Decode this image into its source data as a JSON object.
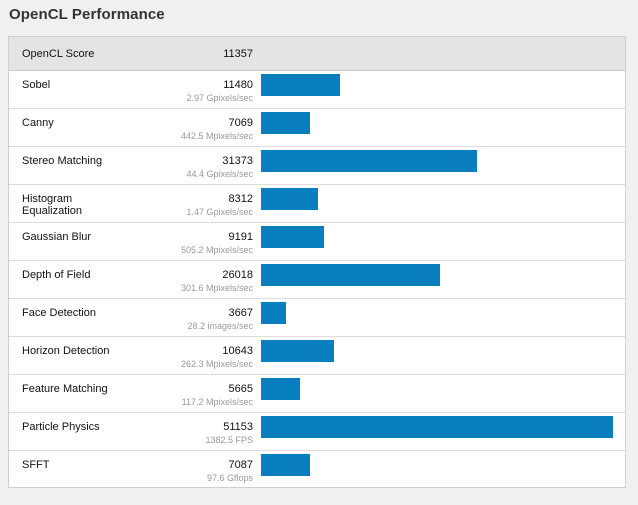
{
  "page": {
    "title": "OpenCL Performance"
  },
  "summary": {
    "label": "OpenCL Score",
    "score": "11357"
  },
  "colors": {
    "bar": "#0a7fbf",
    "header_bg": "#e4e4e4"
  },
  "chart_data": {
    "type": "bar",
    "categories": [
      "Sobel",
      "Canny",
      "Stereo Matching",
      "Histogram Equalization",
      "Gaussian Blur",
      "Depth of Field",
      "Face Detection",
      "Horizon Detection",
      "Feature Matching",
      "Particle Physics",
      "SFFT"
    ],
    "values": [
      11480,
      7069,
      31373,
      8312,
      9191,
      26018,
      3667,
      10643,
      5665,
      51153,
      7087
    ],
    "xlim": [
      0,
      51153
    ]
  },
  "benchmarks": [
    {
      "label": "Sobel",
      "score": "11480",
      "rate": "2.97 Gpixels/sec"
    },
    {
      "label": "Canny",
      "score": "7069",
      "rate": "442.5 Mpixels/sec"
    },
    {
      "label": "Stereo Matching",
      "score": "31373",
      "rate": "44.4 Gpixels/sec"
    },
    {
      "label": "Histogram\nEqualization",
      "score": "8312",
      "rate": "1.47 Gpixels/sec"
    },
    {
      "label": "Gaussian Blur",
      "score": "9191",
      "rate": "505.2 Mpixels/sec"
    },
    {
      "label": "Depth of Field",
      "score": "26018",
      "rate": "301.6 Mpixels/sec"
    },
    {
      "label": "Face Detection",
      "score": "3667",
      "rate": "28.2 images/sec"
    },
    {
      "label": "Horizon Detection",
      "score": "10643",
      "rate": "262.3 Mpixels/sec"
    },
    {
      "label": "Feature Matching",
      "score": "5665",
      "rate": "117.2 Mpixels/sec"
    },
    {
      "label": "Particle Physics",
      "score": "51153",
      "rate": "1382.5 FPS"
    },
    {
      "label": "SFFT",
      "score": "7087",
      "rate": "97.6 Gflops"
    }
  ]
}
